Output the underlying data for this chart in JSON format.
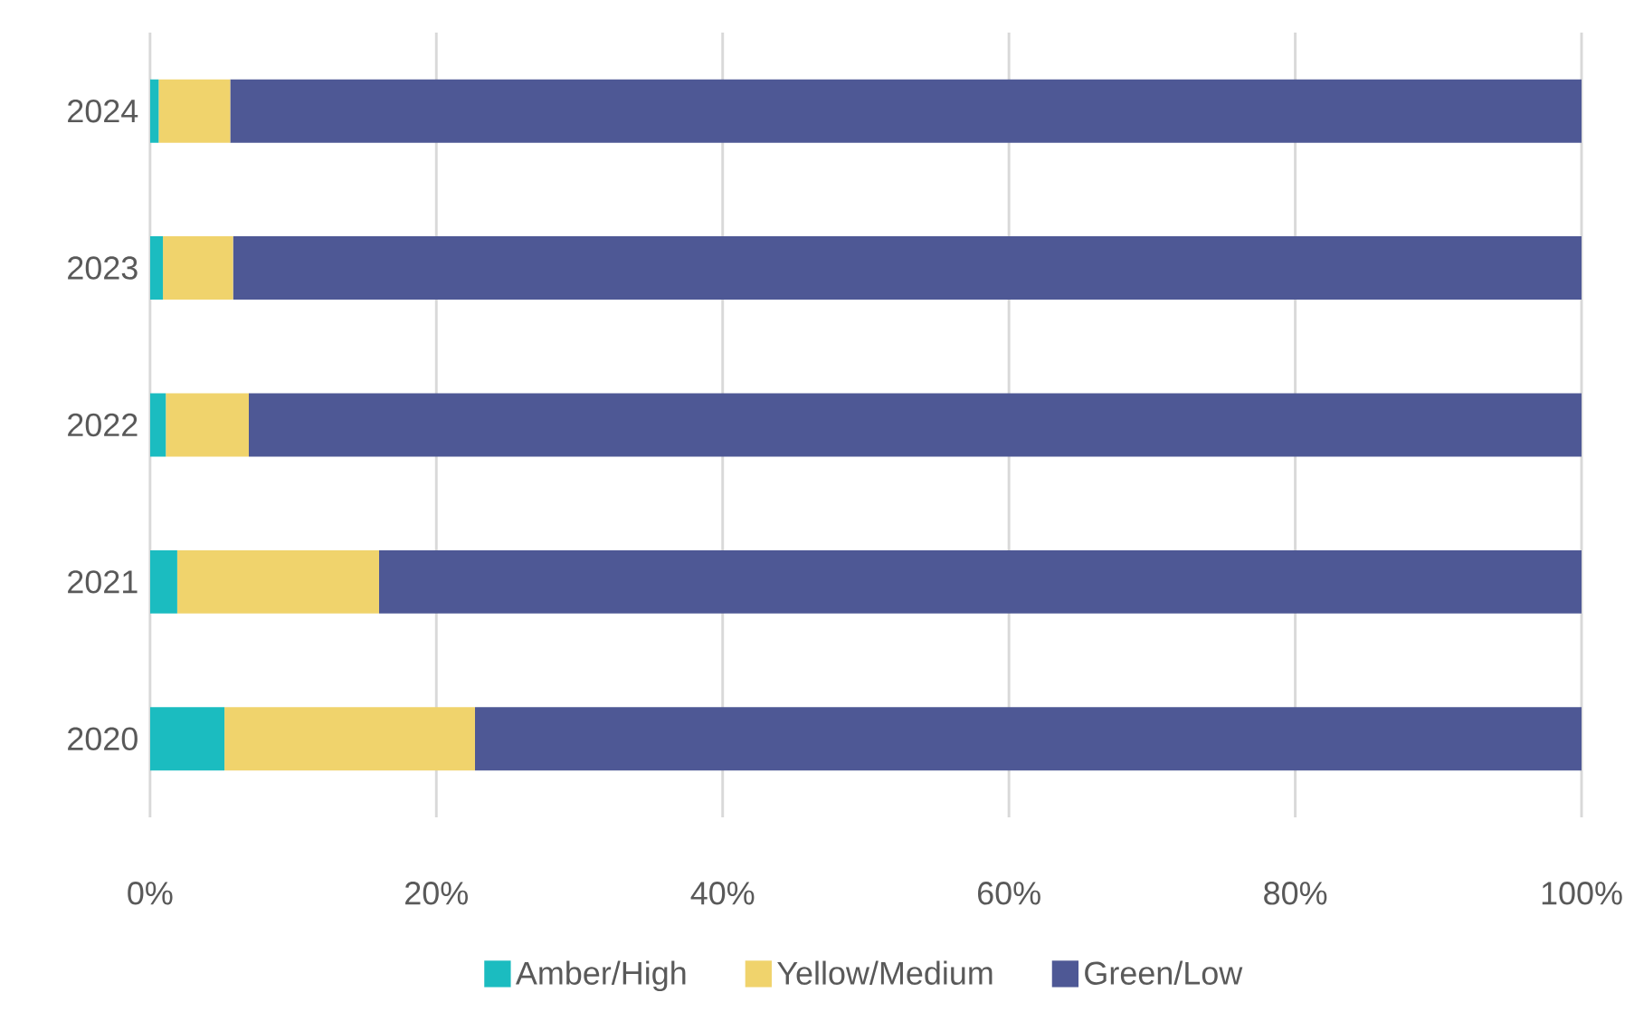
{
  "chart_data": {
    "type": "bar",
    "orientation": "horizontal",
    "stacked": true,
    "categories": [
      "2024",
      "2023",
      "2022",
      "2021",
      "2020"
    ],
    "series": [
      {
        "name": "Amber/High",
        "color": "#1bbcc0",
        "values": [
          0.6,
          0.9,
          1.1,
          1.9,
          5.2
        ]
      },
      {
        "name": "Yellow/Medium",
        "color": "#f0d36c",
        "values": [
          5.0,
          4.9,
          5.8,
          14.1,
          17.5
        ]
      },
      {
        "name": "Green/Low",
        "color": "#4e5895",
        "values": [
          94.4,
          94.2,
          93.1,
          84.0,
          77.3
        ]
      }
    ],
    "xlim": [
      0,
      100
    ],
    "xticks": [
      {
        "value": 0,
        "label": "0%"
      },
      {
        "value": 20,
        "label": "20%"
      },
      {
        "value": 40,
        "label": "40%"
      },
      {
        "value": 60,
        "label": "60%"
      },
      {
        "value": 80,
        "label": "80%"
      },
      {
        "value": 100,
        "label": "100%"
      }
    ],
    "grid": "x",
    "legend": "bottom"
  }
}
